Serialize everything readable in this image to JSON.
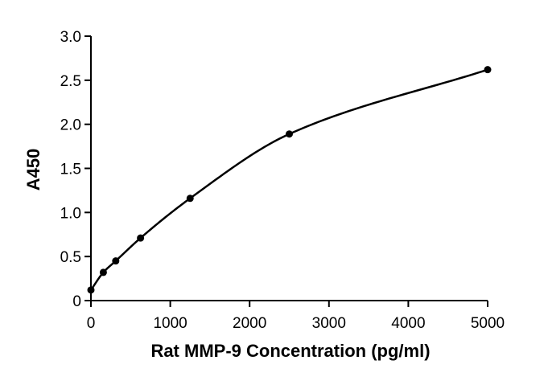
{
  "chart_data": {
    "type": "scatter",
    "title": "",
    "xlabel": "Rat MMP-9 Concentration (pg/ml)",
    "ylabel": "A450",
    "xlim": [
      0,
      5000
    ],
    "ylim": [
      0,
      3.0
    ],
    "x_ticks": [
      0,
      1000,
      2000,
      3000,
      4000,
      5000
    ],
    "y_ticks": [
      0,
      0.5,
      1.0,
      1.5,
      2.0,
      2.5,
      3.0
    ],
    "x_tick_labels": [
      "0",
      "1000",
      "2000",
      "3000",
      "4000",
      "5000"
    ],
    "y_tick_labels": [
      "0",
      "0.5",
      "1.0",
      "1.5",
      "2.0",
      "2.5",
      "3.0"
    ],
    "grid": false,
    "legend": "none",
    "fit": "smooth standard curve through points",
    "series": [
      {
        "x": [
          0,
          156.25,
          312.5,
          625,
          1250,
          2500,
          5000
        ],
        "y": [
          0.12,
          0.32,
          0.45,
          0.71,
          1.16,
          1.89,
          2.62
        ]
      }
    ],
    "colors": {
      "axis": "#000000",
      "points": "#000000",
      "curve": "#000000"
    }
  }
}
